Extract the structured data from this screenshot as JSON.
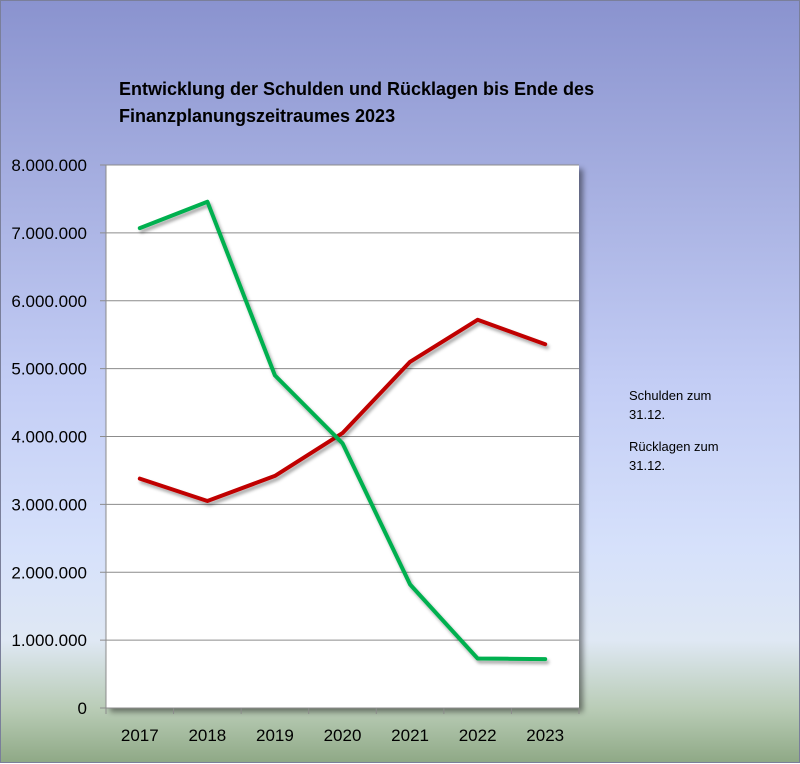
{
  "chart_data": {
    "type": "line",
    "title": "Entwicklung der Schulden und Rücklagen bis Ende des Finanzplanungszeitraumes 2023",
    "title_lines": [
      "Entwicklung der Schulden und Rücklagen bis Ende des",
      "Finanzplanungszeitraumes 2023"
    ],
    "xlabel": "",
    "ylabel": "",
    "categories": [
      "2017",
      "2018",
      "2019",
      "2020",
      "2021",
      "2022",
      "2023"
    ],
    "ylim": [
      0,
      8000000
    ],
    "yticks": [
      0,
      1000000,
      2000000,
      3000000,
      4000000,
      5000000,
      6000000,
      7000000,
      8000000
    ],
    "ytick_labels": [
      "0",
      "1.000.000",
      "2.000.000",
      "3.000.000",
      "4.000.000",
      "5.000.000",
      "6.000.000",
      "7.000.000",
      "8.000.000"
    ],
    "grid": true,
    "legend_position": "right",
    "series": [
      {
        "name": "Schulden zum 31.12.",
        "legend_lines": [
          "Schulden zum",
          "31.12."
        ],
        "color": "#c00000",
        "values": [
          3380000,
          3050000,
          3420000,
          4050000,
          5100000,
          5720000,
          5360000
        ]
      },
      {
        "name": "Rücklagen zum 31.12.",
        "legend_lines": [
          "Rücklagen zum",
          "31.12."
        ],
        "color": "#00b050",
        "values": [
          7070000,
          7460000,
          4900000,
          3900000,
          1820000,
          730000,
          720000
        ]
      }
    ]
  }
}
